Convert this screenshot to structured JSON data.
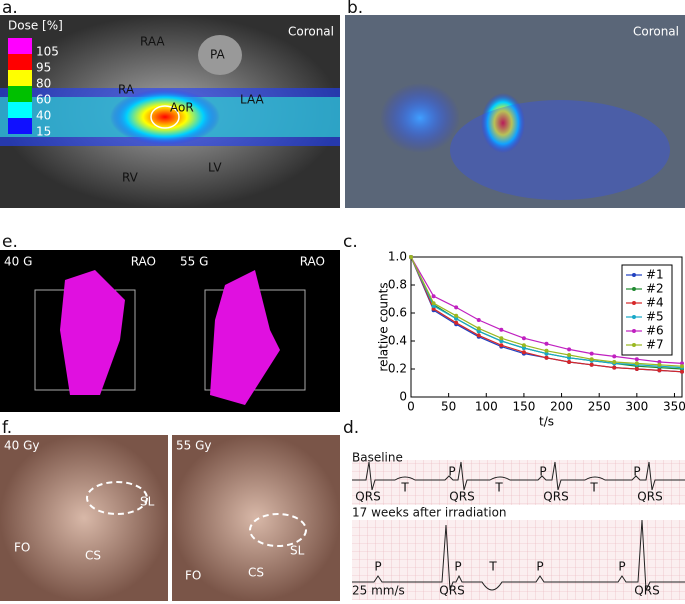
{
  "panels": {
    "a": {
      "label": "a.",
      "dose_title": "Dose [%]",
      "dose_levels": [
        {
          "value": 105,
          "color": "#ff00ff"
        },
        {
          "value": 95,
          "color": "#ff0000"
        },
        {
          "value": 80,
          "color": "#ffff00"
        },
        {
          "value": 60,
          "color": "#00c000"
        },
        {
          "value": 40,
          "color": "#00ffff"
        },
        {
          "value": 15,
          "color": "#1010ff"
        }
      ],
      "view": "Coronal",
      "structures": [
        "RAA",
        "PA",
        "RA",
        "AoR",
        "LAA",
        "RV",
        "LV"
      ]
    },
    "b": {
      "label": "b.",
      "view": "Coronal"
    },
    "e": {
      "label": "e.",
      "maps": [
        {
          "dose": "40 G",
          "view": "RAO"
        },
        {
          "dose": "55 G",
          "view": "RAO"
        }
      ]
    },
    "f": {
      "label": "f.",
      "photos": [
        {
          "dose": "40 Gy",
          "labels": [
            "SL",
            "FO",
            "CS"
          ]
        },
        {
          "dose": "55 Gy",
          "labels": [
            "SL",
            "FO",
            "CS"
          ]
        }
      ]
    },
    "d": {
      "label": "d.",
      "baseline": {
        "title": "Baseline",
        "labels": [
          "QRS",
          "T",
          "P",
          "QRS",
          "T",
          "P",
          "QRS",
          "T",
          "P",
          "QRS"
        ]
      },
      "after": {
        "title": "17 weeks after irradiation",
        "labels": [
          "P",
          "QRS",
          "P",
          "T",
          "P",
          "P",
          "QRS"
        ],
        "speed": "25 mm/s"
      }
    },
    "c": {
      "label": "c."
    }
  },
  "chart_data": {
    "type": "line",
    "x_label": "t/s",
    "y_label": "relative counts",
    "x": [
      0,
      30,
      60,
      90,
      120,
      150,
      180,
      210,
      240,
      270,
      300,
      330,
      360
    ],
    "xlim": [
      0,
      360
    ],
    "xticks": [
      0,
      50,
      100,
      150,
      200,
      250,
      300,
      350
    ],
    "ylim": [
      0,
      1
    ],
    "yticks": [
      0,
      0.2,
      0.4,
      0.6,
      0.8,
      {
        "value": 1,
        "label": "1.0"
      }
    ],
    "legend": "top-right",
    "series": [
      {
        "name": "#1",
        "color": "#2040c0",
        "values": [
          1.0,
          0.62,
          0.52,
          0.43,
          0.36,
          0.31,
          0.28,
          0.25,
          0.23,
          0.21,
          0.2,
          0.19,
          0.18
        ]
      },
      {
        "name": "#2",
        "color": "#208a30",
        "values": [
          1.0,
          0.66,
          0.56,
          0.47,
          0.4,
          0.35,
          0.31,
          0.28,
          0.26,
          0.24,
          0.22,
          0.21,
          0.2
        ]
      },
      {
        "name": "#4",
        "color": "#d62728",
        "values": [
          1.0,
          0.63,
          0.53,
          0.44,
          0.37,
          0.32,
          0.28,
          0.25,
          0.23,
          0.21,
          0.2,
          0.19,
          0.18
        ]
      },
      {
        "name": "#5",
        "color": "#17a8c8",
        "values": [
          1.0,
          0.65,
          0.56,
          0.47,
          0.4,
          0.35,
          0.31,
          0.28,
          0.26,
          0.24,
          0.23,
          0.22,
          0.21
        ]
      },
      {
        "name": "#6",
        "color": "#c020c0",
        "values": [
          1.0,
          0.72,
          0.64,
          0.55,
          0.48,
          0.42,
          0.38,
          0.34,
          0.31,
          0.29,
          0.27,
          0.25,
          0.24
        ]
      },
      {
        "name": "#7",
        "color": "#9ab820",
        "values": [
          1.0,
          0.67,
          0.58,
          0.49,
          0.42,
          0.37,
          0.33,
          0.3,
          0.27,
          0.25,
          0.24,
          0.23,
          0.22
        ]
      }
    ]
  }
}
